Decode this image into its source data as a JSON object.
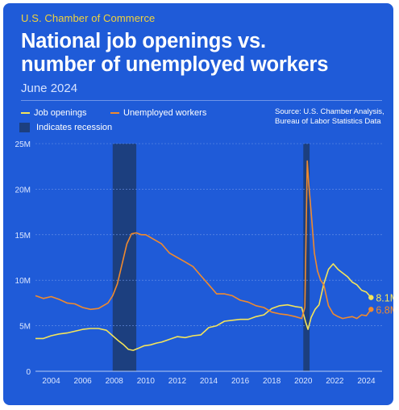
{
  "header": {
    "org": "U.S. Chamber of Commerce",
    "title_line1": "National job openings vs.",
    "title_line2": "number of unemployed workers",
    "subtitle": "June 2024"
  },
  "source": {
    "line1": "Source: U.S. Chamber Analysis,",
    "line2": "Bureau of Labor Statistics Data"
  },
  "colors": {
    "background": "#1f5bd8",
    "job_openings": "#f4e45a",
    "unemployed": "#f08a2e",
    "recession": "#1c3f7f",
    "org_text": "#f2d23c"
  },
  "chart_data": {
    "type": "line",
    "series": [
      {
        "name": "Job openings",
        "color": "#f4e45a",
        "end_label": "8.1M",
        "x": [
          2003.0,
          2003.5,
          2004.0,
          2004.5,
          2005.0,
          2005.5,
          2006.0,
          2006.5,
          2007.0,
          2007.5,
          2007.9,
          2008.3,
          2008.6,
          2008.9,
          2009.2,
          2009.5,
          2009.9,
          2010.3,
          2010.7,
          2011.0,
          2011.5,
          2012.0,
          2012.5,
          2013.0,
          2013.5,
          2014.0,
          2014.5,
          2015.0,
          2015.5,
          2016.0,
          2016.5,
          2017.0,
          2017.5,
          2018.0,
          2018.5,
          2019.0,
          2019.5,
          2019.9,
          2020.15,
          2020.3,
          2020.5,
          2020.75,
          2021.0,
          2021.3,
          2021.6,
          2021.9,
          2022.2,
          2022.5,
          2022.8,
          2023.1,
          2023.4,
          2023.7,
          2024.0,
          2024.3
        ],
        "values": [
          3.6,
          3.6,
          3.9,
          4.1,
          4.2,
          4.4,
          4.6,
          4.7,
          4.7,
          4.5,
          3.9,
          3.3,
          2.9,
          2.4,
          2.3,
          2.5,
          2.8,
          2.9,
          3.1,
          3.2,
          3.5,
          3.8,
          3.7,
          3.9,
          4.0,
          4.8,
          5.0,
          5.5,
          5.6,
          5.7,
          5.7,
          6.0,
          6.2,
          6.9,
          7.2,
          7.3,
          7.1,
          7.0,
          5.4,
          4.6,
          5.9,
          6.8,
          7.3,
          9.6,
          11.2,
          11.8,
          11.2,
          10.8,
          10.4,
          9.8,
          9.5,
          8.9,
          8.7,
          8.1
        ]
      },
      {
        "name": "Unemployed workers",
        "color": "#f08a2e",
        "end_label": "6.8M",
        "x": [
          2003.0,
          2003.5,
          2004.0,
          2004.5,
          2005.0,
          2005.5,
          2006.0,
          2006.5,
          2007.0,
          2007.3,
          2007.6,
          2007.9,
          2008.2,
          2008.5,
          2008.8,
          2009.1,
          2009.4,
          2009.7,
          2010.0,
          2010.5,
          2011.0,
          2011.5,
          2012.0,
          2012.5,
          2013.0,
          2013.5,
          2014.0,
          2014.5,
          2015.0,
          2015.5,
          2016.0,
          2016.5,
          2017.0,
          2017.5,
          2018.0,
          2018.5,
          2019.0,
          2019.5,
          2019.9,
          2020.1,
          2020.25,
          2020.35,
          2020.5,
          2020.7,
          2020.9,
          2021.1,
          2021.3,
          2021.6,
          2021.9,
          2022.2,
          2022.5,
          2022.8,
          2023.1,
          2023.4,
          2023.7,
          2024.0,
          2024.3
        ],
        "values": [
          8.3,
          8.0,
          8.2,
          7.9,
          7.5,
          7.4,
          7.0,
          6.8,
          6.9,
          7.2,
          7.5,
          8.3,
          9.6,
          11.8,
          14.0,
          15.1,
          15.2,
          15.0,
          15.0,
          14.5,
          14.0,
          13.0,
          12.5,
          12.0,
          11.5,
          10.5,
          9.5,
          8.5,
          8.5,
          8.3,
          7.8,
          7.6,
          7.2,
          7.0,
          6.5,
          6.3,
          6.2,
          6.0,
          5.8,
          7.0,
          23.1,
          20.5,
          17.5,
          13.0,
          11.0,
          10.0,
          9.5,
          7.2,
          6.3,
          6.0,
          5.8,
          5.9,
          6.0,
          5.8,
          6.2,
          6.1,
          6.8
        ]
      }
    ],
    "recessions": [
      [
        2007.9,
        2009.4
      ],
      [
        2020.0,
        2020.4
      ]
    ],
    "x_ticks": [
      "2004",
      "2006",
      "2008",
      "2010",
      "2012",
      "2014",
      "2016",
      "2018",
      "2020",
      "2022",
      "2024"
    ],
    "y_ticks": [
      "0",
      "5M",
      "10M",
      "15M",
      "20M",
      "25M"
    ],
    "xlim": [
      2003.0,
      2025.0
    ],
    "ylim": [
      0,
      25
    ],
    "legend": {
      "job_openings": "Job openings",
      "unemployed": "Unemployed workers",
      "recession": "Indicates recession"
    },
    "title": "National job openings vs. number of unemployed workers",
    "subtitle": "June 2024"
  }
}
